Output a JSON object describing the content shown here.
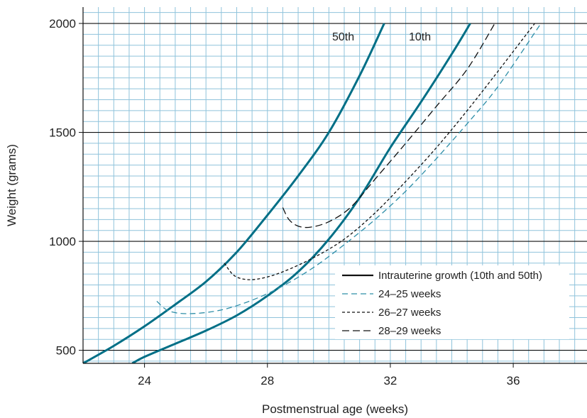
{
  "chart_data": {
    "type": "line",
    "title": "",
    "xlabel": "Postmenstrual age (weeks)",
    "ylabel": "Weight (grams)",
    "xlim": [
      22,
      38.4
    ],
    "ylim": [
      440,
      2075
    ],
    "xticks": [
      24,
      28,
      32,
      36
    ],
    "yticks": [
      500,
      1000,
      1500,
      2000
    ],
    "grid": true,
    "legend_position": "bottom-right",
    "colors": {
      "grid_minor": "#8fc3db",
      "grid_major": "#111111",
      "intrauterine": "#006f86",
      "series_24_25": "#2f8fa8",
      "series_26_27": "#111111",
      "series_28_29": "#111111"
    },
    "curve_labels": [
      {
        "text": "50th",
        "series": "Intrauterine 50th"
      },
      {
        "text": "10th",
        "series": "Intrauterine 10th"
      }
    ],
    "legend": [
      {
        "label": "Intrauterine growth (10th and 50th)",
        "style": "solid",
        "color": "#111111"
      },
      {
        "label": "24–25 weeks",
        "style": "dashed",
        "color": "#2f8fa8"
      },
      {
        "label": "26–27 weeks",
        "style": "dotted",
        "color": "#111111"
      },
      {
        "label": "28–29 weeks",
        "style": "longdash",
        "color": "#111111"
      }
    ],
    "series": [
      {
        "name": "Intrauterine growth (10th and 50th)",
        "style": "solid",
        "color": "#006f86",
        "x": [
          22.0,
          23.0,
          24.0,
          25.0,
          26.0,
          27.0,
          28.0,
          29.0,
          30.0,
          31.0,
          31.8
        ],
        "y": [
          440,
          520,
          610,
          710,
          815,
          950,
          1120,
          1300,
          1500,
          1760,
          2000
        ]
      },
      {
        "name": "Intrauterine growth (10th and 50th)",
        "style": "solid",
        "color": "#006f86",
        "x": [
          23.6,
          24.0,
          25.0,
          26.0,
          27.0,
          28.0,
          29.0,
          30.0,
          31.0,
          32.0,
          33.0,
          34.0,
          34.6
        ],
        "y": [
          440,
          470,
          530,
          590,
          660,
          750,
          860,
          1010,
          1200,
          1430,
          1640,
          1860,
          2000
        ]
      },
      {
        "name": "24–25 weeks",
        "style": "dashed",
        "color": "#2f8fa8",
        "x": [
          24.4,
          24.8,
          25.5,
          26.5,
          27.5,
          28.5,
          29.5,
          30.5,
          31.5,
          32.5,
          33.5,
          34.5,
          35.5,
          36.9
        ],
        "y": [
          725,
          680,
          668,
          685,
          730,
          795,
          880,
          985,
          1100,
          1230,
          1380,
          1540,
          1710,
          2000
        ]
      },
      {
        "name": "26–27 weeks",
        "style": "dotted",
        "color": "#111111",
        "x": [
          26.6,
          26.9,
          27.3,
          27.8,
          28.5,
          29.5,
          30.5,
          31.5,
          32.5,
          33.5,
          34.5,
          35.5,
          36.7
        ],
        "y": [
          900,
          845,
          825,
          830,
          860,
          925,
          1010,
          1130,
          1275,
          1430,
          1600,
          1780,
          2000
        ]
      },
      {
        "name": "28–29 weeks",
        "style": "longdash",
        "color": "#111111",
        "x": [
          28.5,
          28.7,
          29.0,
          29.4,
          30.0,
          30.7,
          31.5,
          32.5,
          33.5,
          34.5,
          35.4
        ],
        "y": [
          1155,
          1100,
          1070,
          1065,
          1090,
          1155,
          1285,
          1450,
          1620,
          1790,
          2000
        ]
      }
    ]
  }
}
